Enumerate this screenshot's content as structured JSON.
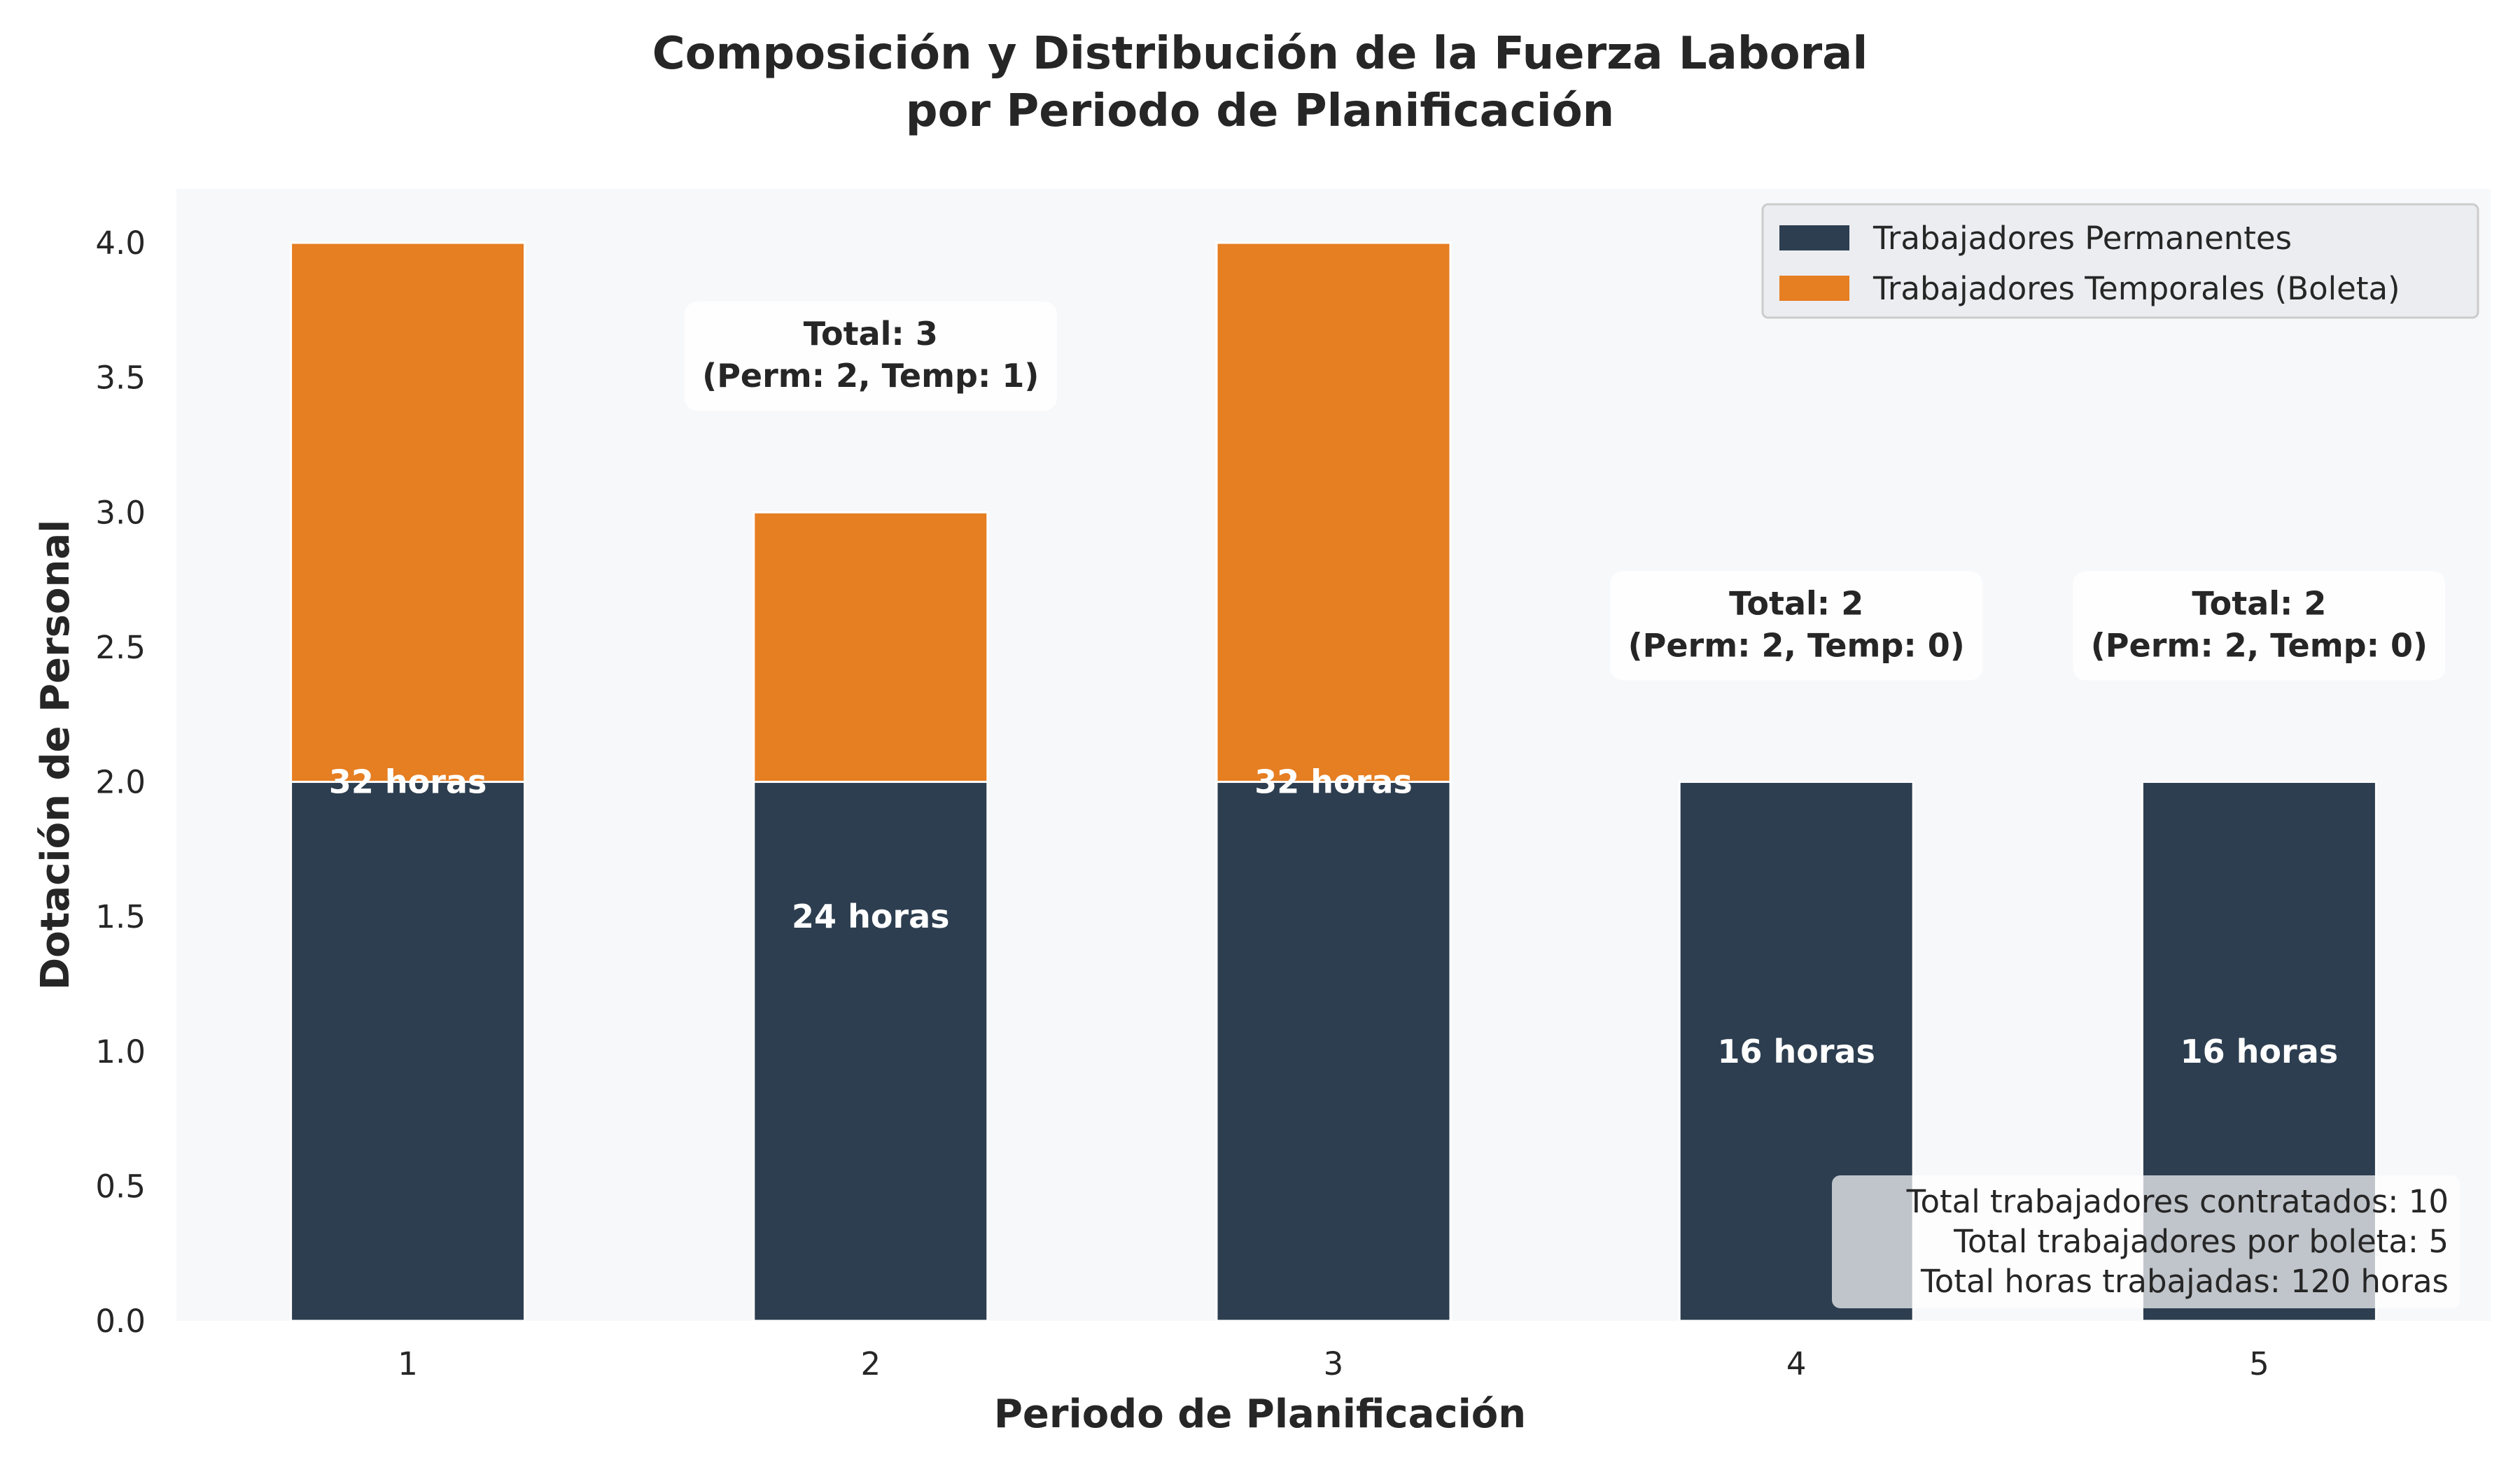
{
  "colors": {
    "permanent": "#2d3e50",
    "temporary": "#e67e22",
    "plot_background": "#f7f8fa",
    "text": "#262626",
    "bar_label": "#ffffff",
    "legend_background": "#eaebf0"
  },
  "chart_data": {
    "type": "bar",
    "stacked": true,
    "title": "Composición y Distribución de la Fuerza Laboral\npor Periodo de Planificación",
    "xlabel": "Periodo de Planificación",
    "ylabel": "Dotación de Personal",
    "categories": [
      "1",
      "2",
      "3",
      "4",
      "5"
    ],
    "ylim": [
      0,
      4.2
    ],
    "yticks": [
      "0.0",
      "0.5",
      "1.0",
      "1.5",
      "2.0",
      "2.5",
      "3.0",
      "3.5",
      "4.0"
    ],
    "grid": false,
    "legend_position": "top-right",
    "series": [
      {
        "name": "Trabajadores Permanentes",
        "values": [
          2,
          2,
          2,
          2,
          2
        ],
        "color": "#2d3e50"
      },
      {
        "name": "Trabajadores Temporales (Boleta)",
        "values": [
          2,
          1,
          2,
          0,
          0
        ],
        "color": "#e67e22"
      }
    ],
    "hours_labels": [
      "32 horas",
      "24 horas",
      "32 horas",
      "16 horas",
      "16 horas"
    ],
    "total_annotations": [
      {
        "category": "2",
        "text": "Total: 3\n(Perm: 2, Temp: 1)"
      },
      {
        "category": "4",
        "text": "Total: 2\n(Perm: 2, Temp: 0)"
      },
      {
        "category": "5",
        "text": "Total: 2\n(Perm: 2, Temp: 0)"
      }
    ],
    "summary": [
      "Total trabajadores contratados: 10",
      "Total trabajadores por boleta: 5",
      "Total horas trabajadas: 120 horas"
    ]
  }
}
